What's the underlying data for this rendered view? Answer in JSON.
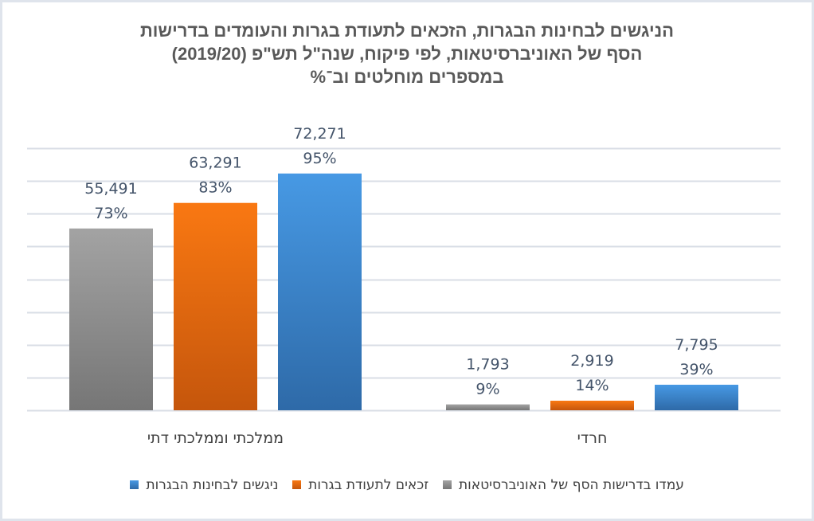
{
  "chart_data": {
    "type": "bar",
    "title_lines": [
      "הניגשים לבחינות הבגרות, הזכאים לתעודת בגרות והעומדים בדרישות",
      "הסף של האוניברסיטאות, לפי פיקוח, שנה\"ל תש\"פ (2019/20)",
      "במספרים מוחלטים וב־%"
    ],
    "categories": [
      "ממלכתי וממלכתי דתי",
      "חרדי"
    ],
    "series": [
      {
        "name": "עמדו בדרישות הסף של האוניברסיטאות",
        "color": "#8c8c8c",
        "color_top": "#a3a3a3",
        "color_bottom": "#767676",
        "values": [
          55491,
          1793
        ],
        "labels": [
          "55,491",
          "1,793"
        ],
        "percents": [
          "73%",
          "9%"
        ]
      },
      {
        "name": "זכאים לתעודת בגרות",
        "color": "#ed7d31",
        "color_top": "#f97812",
        "color_bottom": "#c5560c",
        "values": [
          63291,
          2919
        ],
        "labels": [
          "63,291",
          "2,919"
        ],
        "percents": [
          "83%",
          "14%"
        ]
      },
      {
        "name": "ניגשים לבחינות הבגרות",
        "color": "#3d85d0",
        "color_top": "#4799e4",
        "color_bottom": "#2e6aa8",
        "values": [
          72271,
          7795
        ],
        "labels": [
          "72,271",
          "7,795"
        ],
        "percents": [
          "95%",
          "39%"
        ]
      }
    ],
    "xlabel": "",
    "ylabel": "",
    "ylim": [
      0,
      80000
    ],
    "gridline_step": 10000,
    "grid": true,
    "y_axis_labels_visible": false,
    "legend_position": "bottom",
    "gridline_color": "#d9dee6"
  }
}
